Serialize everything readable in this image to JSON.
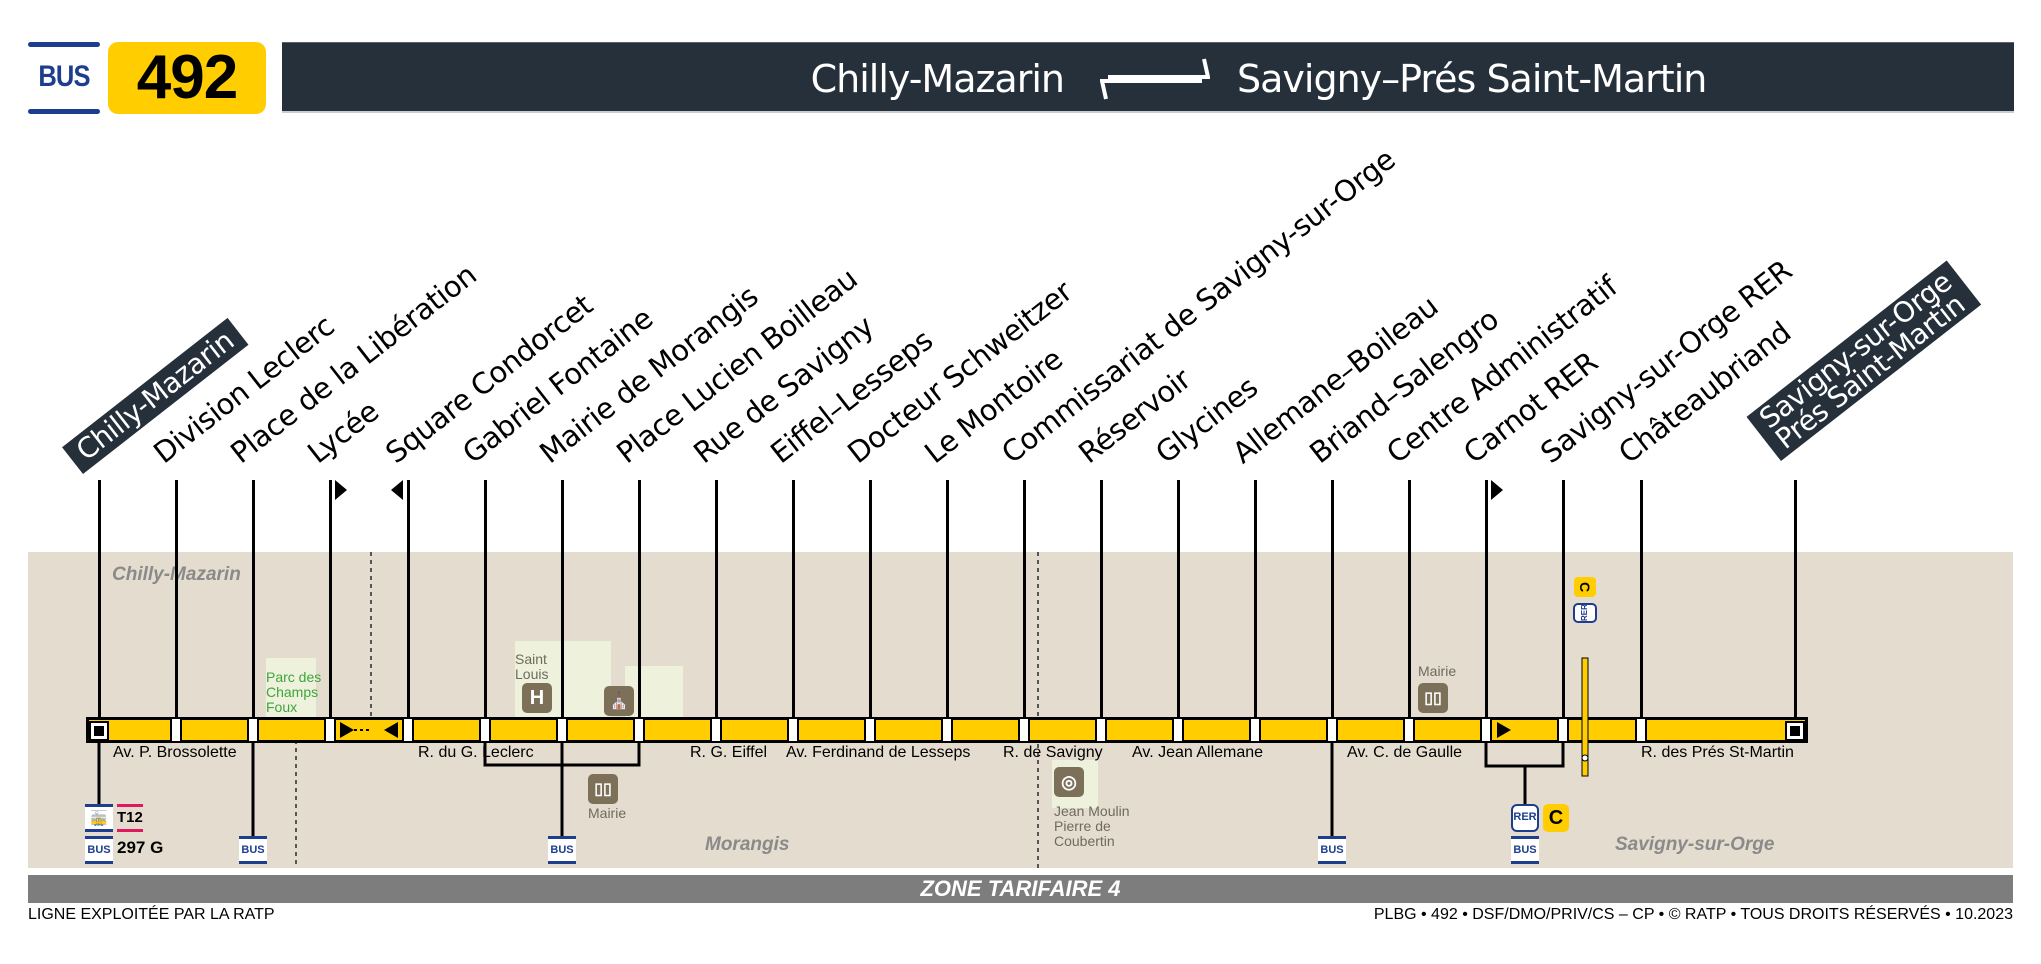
{
  "header": {
    "mode_label": "BUS",
    "line_number": "492",
    "origin": "Chilly-Mazarin",
    "destination": "Savigny–Prés Saint-Martin",
    "direction_icon": "bidirectional-arrows-icon"
  },
  "stops": [
    {
      "name": "Chilly-Mazarin",
      "terminus": true
    },
    {
      "name": "Division Leclerc"
    },
    {
      "name": "Place de la Libération"
    },
    {
      "name": "Lycée",
      "direction": "one-way-right"
    },
    {
      "name": "Square Condorcet",
      "direction": "one-way-left"
    },
    {
      "name": "Gabriel Fontaine"
    },
    {
      "name": "Mairie de Morangis"
    },
    {
      "name": "Place Lucien Boilleau"
    },
    {
      "name": "Rue de Savigny"
    },
    {
      "name": "Eiffel–Lesseps"
    },
    {
      "name": "Docteur Schweitzer"
    },
    {
      "name": "Le Montoire"
    },
    {
      "name": "Commissariat de Savigny-sur-Orge"
    },
    {
      "name": "Réservoir"
    },
    {
      "name": "Glycines"
    },
    {
      "name": "Allemane–Boileau"
    },
    {
      "name": "Briand–Salengro"
    },
    {
      "name": "Centre Administratif"
    },
    {
      "name": "Carnot RER",
      "direction": "one-way-right"
    },
    {
      "name": "Savigny-sur-Orge RER"
    },
    {
      "name": "Châteaubriand"
    },
    {
      "name": "Savigny-sur-Orge Prés Saint-Martin",
      "terminus": true,
      "lines": [
        "Savigny-sur-Orge",
        "Prés Saint-Martin"
      ]
    }
  ],
  "communes": [
    "Chilly-Mazarin",
    "Morangis",
    "Savigny-sur-Orge"
  ],
  "streets": [
    "Av. P. Brossolette",
    "R. du G. Leclerc",
    "R. G. Eiffel",
    "Av. Ferdinand de Lesseps",
    "R. de Savigny",
    "Av. Jean Allemane",
    "Av. C. de Gaulle",
    "R. des Prés St-Martin"
  ],
  "points_of_interest": [
    {
      "label": "Parc des\nChamps\nFoux",
      "type": "park"
    },
    {
      "label": "Saint\nLouis",
      "type": "hospital",
      "icon": "H"
    },
    {
      "label": "",
      "type": "church"
    },
    {
      "label": "Mairie",
      "type": "town-hall",
      "near": "Morangis"
    },
    {
      "label": "Jean Moulin\nPierre de\nCoubertin",
      "type": "stadium"
    },
    {
      "label": "Mairie",
      "type": "town-hall",
      "near": "Savigny-sur-Orge"
    }
  ],
  "connections": [
    {
      "stop": "Chilly-Mazarin",
      "modes": [
        "Tram T12",
        "BUS 297 G"
      ],
      "tram": "T12",
      "bus": "297 G"
    },
    {
      "stop": "Place de la Libération",
      "modes": [
        "BUS"
      ]
    },
    {
      "stop": "Mairie de Morangis",
      "modes": [
        "BUS"
      ]
    },
    {
      "stop": "Allemane–Boileau",
      "modes": [
        "BUS"
      ]
    },
    {
      "stop": "Carnot RER",
      "modes": [
        "RER C",
        "BUS"
      ],
      "rer": "C"
    },
    {
      "stop": "Savigny-sur-Orge RER",
      "modes": [
        "RER C"
      ],
      "rer": "C"
    }
  ],
  "labels": {
    "bus": "BUS",
    "rer": "RER",
    "rer_line": "C",
    "tram_line": "T12",
    "bus_297": "297 G"
  },
  "zone": "ZONE TARIFAIRE 4",
  "footer": {
    "operator": "LIGNE EXPLOITÉE PAR LA RATP",
    "credits": "PLBG • 492 • DSF/DMO/PRIV/CS – CP • © RATP • TOUS DROITS RÉSERVÉS • 10.2023"
  },
  "colors": {
    "line_yellow": "#ffcd00",
    "header_dark": "#25303b",
    "ratp_blue": "#1d3d8f",
    "zone_bg": "#e4ddcf",
    "zone_bar": "#7d7d7d",
    "tram_pink": "#e0185e"
  }
}
